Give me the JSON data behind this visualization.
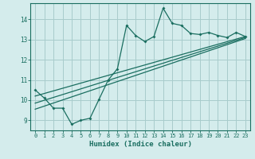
{
  "xlabel": "Humidex (Indice chaleur)",
  "ylabel": "",
  "bg_color": "#d4ecec",
  "grid_color": "#a8cccc",
  "line_color": "#1a6e60",
  "xlim": [
    -0.5,
    23.5
  ],
  "ylim": [
    8.5,
    14.8
  ],
  "yticks": [
    9,
    10,
    11,
    12,
    13,
    14
  ],
  "xticks": [
    0,
    1,
    2,
    3,
    4,
    5,
    6,
    7,
    8,
    9,
    10,
    11,
    12,
    13,
    14,
    15,
    16,
    17,
    18,
    19,
    20,
    21,
    22,
    23
  ],
  "curve_x": [
    0,
    1,
    2,
    3,
    4,
    5,
    6,
    7,
    8,
    9,
    10,
    11,
    12,
    13,
    14,
    15,
    16,
    17,
    18,
    19,
    20,
    21,
    22,
    23
  ],
  "curve_y": [
    10.5,
    10.1,
    9.6,
    9.6,
    8.8,
    9.0,
    9.1,
    10.05,
    11.0,
    11.55,
    13.7,
    13.2,
    12.9,
    13.15,
    14.55,
    13.8,
    13.7,
    13.3,
    13.25,
    13.35,
    13.2,
    13.1,
    13.35,
    13.15
  ],
  "reg_line1_x": [
    0,
    23
  ],
  "reg_line1_y": [
    9.55,
    13.05
  ],
  "reg_line2_x": [
    0,
    23
  ],
  "reg_line2_y": [
    9.85,
    13.1
  ],
  "reg_line3_x": [
    0,
    23
  ],
  "reg_line3_y": [
    10.2,
    13.15
  ]
}
